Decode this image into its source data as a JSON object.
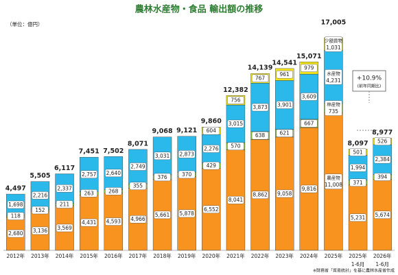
{
  "chart_data": {
    "type": "stacked_bar",
    "title": "農林水産物・食品 輸出額の推移",
    "unit": "（単位：億円）",
    "source": "※財務省「貿易統計」を基に農林水産省作成",
    "annotation": {
      "text": "+10.9%",
      "subtext": "(前年同期比)"
    },
    "categories": [
      [
        "2012年"
      ],
      [
        "2013年"
      ],
      [
        "2014年"
      ],
      [
        "2015年"
      ],
      [
        "2016年"
      ],
      [
        "2017年"
      ],
      [
        "2018年"
      ],
      [
        "2019年"
      ],
      [
        "2020年"
      ],
      [
        "2021年"
      ],
      [
        "2022年"
      ],
      [
        "2023年"
      ],
      [
        "2024年"
      ],
      [
        "2025年"
      ],
      [
        "2025年",
        "1-6月"
      ],
      [
        "2026年",
        "1-6月"
      ]
    ],
    "series": [
      {
        "name": "農産物",
        "color": "#f7931e",
        "values": [
          2680,
          3136,
          3569,
          4431,
          4593,
          4966,
          5661,
          5878,
          6552,
          8041,
          8862,
          9058,
          9816,
          11008,
          5231,
          5674
        ],
        "value_labels": [
          "2,680",
          "3,136",
          "3,569",
          "4,431",
          "4,593",
          "4,966",
          "5,661",
          "5,878",
          "6,552",
          "8,041",
          "8,862",
          "9,058",
          "9,816",
          "11,008",
          "5,231",
          "5,674"
        ]
      },
      {
        "name": "林産物",
        "color": "#8dc63f",
        "values": [
          118,
          152,
          211,
          263,
          268,
          355,
          376,
          370,
          429,
          570,
          638,
          621,
          667,
          735,
          371,
          394
        ],
        "value_labels": [
          "118",
          "152",
          "211",
          "263",
          "268",
          "355",
          "376",
          "370",
          "429",
          "570",
          "638",
          "621",
          "667",
          "735",
          "371",
          "394"
        ]
      },
      {
        "name": "水産物",
        "color": "#2bb8ea",
        "values": [
          1698,
          2216,
          2337,
          2757,
          2640,
          2749,
          3031,
          2873,
          2276,
          3015,
          3873,
          3901,
          3609,
          4231,
          1994,
          2384
        ],
        "value_labels": [
          "1,698",
          "2,216",
          "2,337",
          "2,757",
          "2,640",
          "2,749",
          "3,031",
          "2,873",
          "2,276",
          "3,015",
          "3,873",
          "3,901",
          "3,609",
          "4,231",
          "1,994",
          "2,384"
        ]
      },
      {
        "name": "少額貨物",
        "color": "#f2e41a",
        "values": [
          null,
          null,
          null,
          null,
          null,
          null,
          null,
          null,
          604,
          756,
          767,
          961,
          979,
          1031,
          501,
          526
        ],
        "value_labels": [
          null,
          null,
          null,
          null,
          null,
          null,
          null,
          null,
          "604",
          "756",
          "767",
          "961",
          "979",
          "1,031",
          "501",
          "526"
        ]
      }
    ],
    "totals": [
      4497,
      5505,
      6117,
      7451,
      7502,
      8071,
      9068,
      9121,
      9860,
      12382,
      14139,
      14541,
      15071,
      17005,
      8097,
      8977
    ],
    "total_labels": [
      "4,497",
      "5,505",
      "6,117",
      "7,451",
      "7,502",
      "8,071",
      "9,068",
      "9,121",
      "9,860",
      "12,382",
      "14,139",
      "14,541",
      "15,071",
      "17,005",
      "8,097",
      "8,977"
    ]
  }
}
